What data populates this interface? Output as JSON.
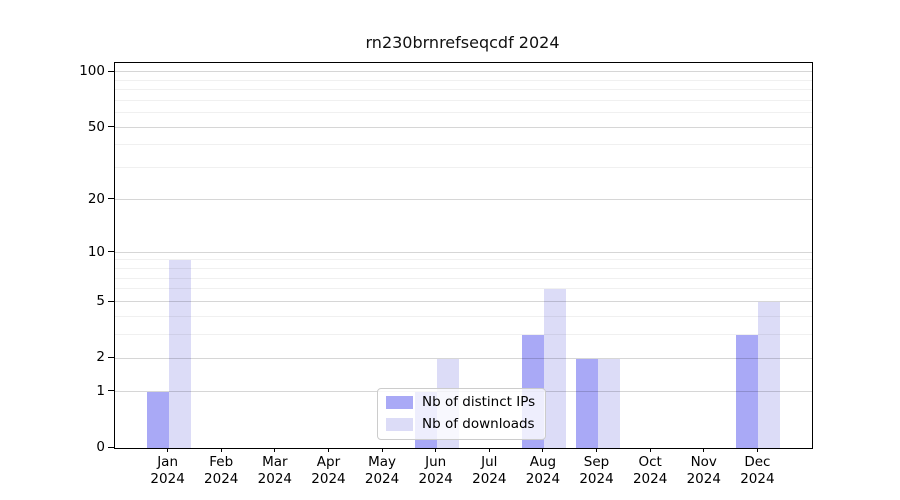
{
  "chart_data": {
    "type": "bar",
    "title": "rn230brnrefseqcdf 2024",
    "categories": [
      "Jan",
      "Feb",
      "Mar",
      "Apr",
      "May",
      "Jun",
      "Jul",
      "Aug",
      "Sep",
      "Oct",
      "Nov",
      "Dec"
    ],
    "year_label": "2024",
    "series": [
      {
        "name": "Nb of distinct IPs",
        "color": "#a9a9f6",
        "values": [
          1,
          0,
          0,
          0,
          0,
          1,
          0,
          3,
          2,
          0,
          0,
          3
        ]
      },
      {
        "name": "Nb of downloads",
        "color": "#dcdcf7",
        "values": [
          9,
          0,
          0,
          0,
          0,
          2,
          0,
          6,
          2,
          0,
          0,
          5
        ]
      }
    ],
    "y_axis": {
      "scale": "log1p",
      "ticks": [
        0,
        1,
        2,
        5,
        10,
        20,
        50,
        100
      ],
      "minor_gridlines": [
        3,
        4,
        6,
        7,
        8,
        9,
        30,
        40,
        60,
        70,
        80,
        90
      ],
      "top_value": 110
    },
    "grid": "on",
    "legend_position": "lower center"
  },
  "colors": {
    "axis": "#000000",
    "major_grid": "#d6d6d6",
    "minor_grid": "#efefef",
    "background": "#ffffff"
  }
}
